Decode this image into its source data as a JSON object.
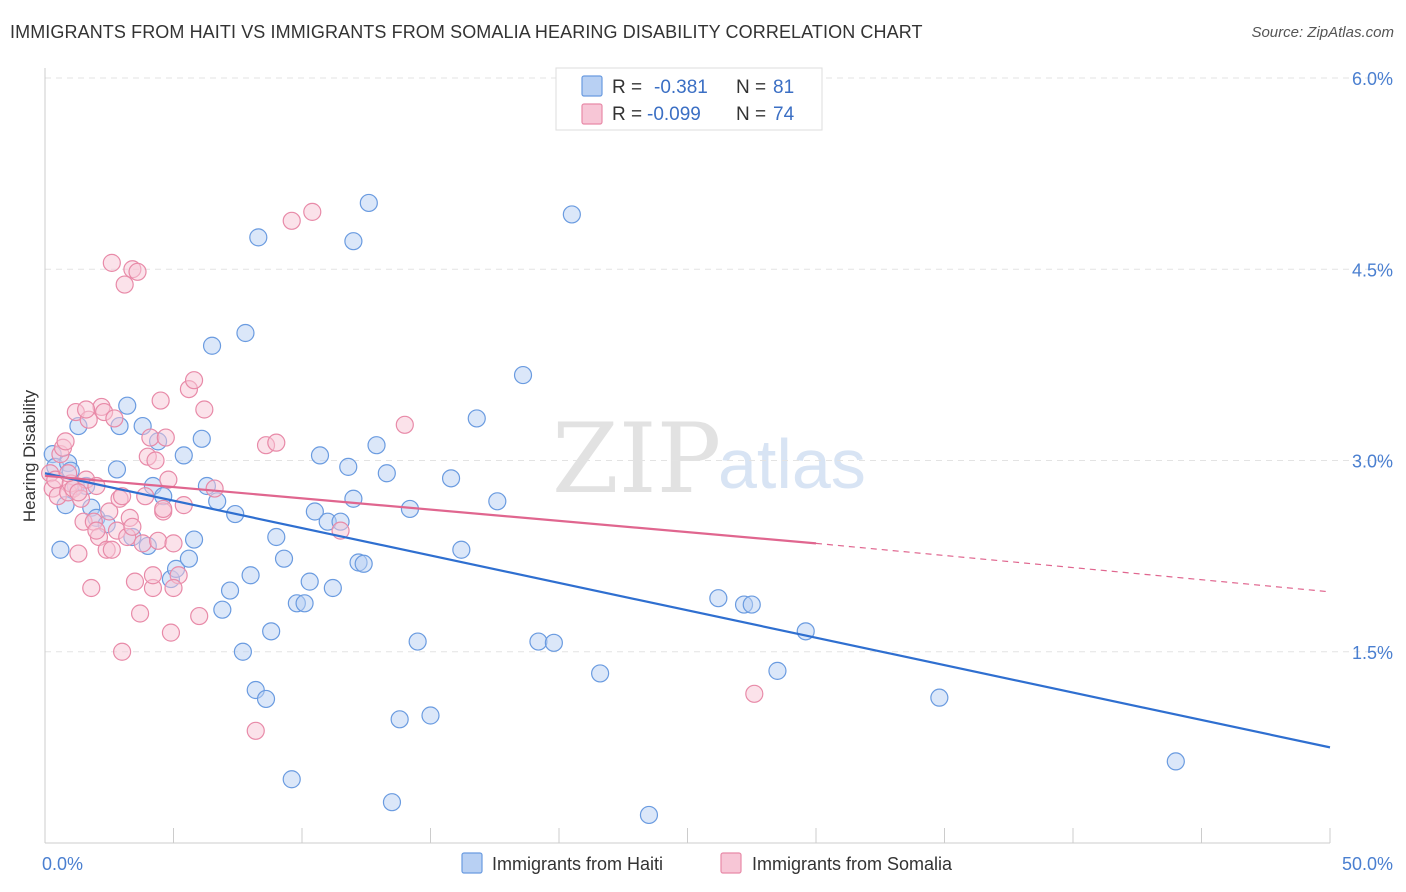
{
  "header": {
    "title": "IMMIGRANTS FROM HAITI VS IMMIGRANTS FROM SOMALIA HEARING DISABILITY CORRELATION CHART",
    "source": "Source: ZipAtlas.com"
  },
  "watermark": {
    "zip": "ZIP",
    "atlas": "atlas"
  },
  "legend_top": [
    {
      "r_label": "R =",
      "r_value": "-0.381",
      "n_label": "N =",
      "n_value": "81",
      "color": "#6a9be0",
      "fill": "#b8d0f3"
    },
    {
      "r_label": "R =",
      "r_value": "-0.099",
      "n_label": "N =",
      "n_value": "74",
      "color": "#e88aa8",
      "fill": "#f7c6d6"
    }
  ],
  "colors": {
    "haiti_stroke": "#6a9be0",
    "haiti_fill": "#b8d0f3",
    "haiti_line": "#2f6fd0",
    "somalia_stroke": "#e88aa8",
    "somalia_fill": "#f7c6d6",
    "somalia_line": "#e0668f",
    "grid": "#e3e3e3",
    "axis": "#cccccc",
    "tick_text": "#4a7fd0"
  },
  "chart_data": {
    "type": "scatter",
    "title": "IMMIGRANTS FROM HAITI VS IMMIGRANTS FROM SOMALIA HEARING DISABILITY CORRELATION CHART",
    "xlabel": "",
    "ylabel": "Hearing Disability",
    "xlim": [
      0,
      50
    ],
    "ylim": [
      0,
      6.0
    ],
    "x_tick_labels": [
      "0.0%",
      "50.0%"
    ],
    "y_ticks": [
      1.5,
      3.0,
      4.5,
      6.0
    ],
    "y_tick_labels": [
      "1.5%",
      "3.0%",
      "4.5%",
      "6.0%"
    ],
    "grid": true,
    "legend_placement": "bottom-center",
    "series": [
      {
        "name": "Immigrants from Haiti",
        "trend": {
          "x": [
            0,
            50
          ],
          "y": [
            2.9,
            0.75
          ]
        },
        "points": [
          [
            0.3,
            3.05
          ],
          [
            0.4,
            2.95
          ],
          [
            0.6,
            2.3
          ],
          [
            0.8,
            2.65
          ],
          [
            0.9,
            2.98
          ],
          [
            1.0,
            2.92
          ],
          [
            1.2,
            2.8
          ],
          [
            1.3,
            3.27
          ],
          [
            1.6,
            2.8
          ],
          [
            1.8,
            2.63
          ],
          [
            2.0,
            2.55
          ],
          [
            2.4,
            2.5
          ],
          [
            2.8,
            2.93
          ],
          [
            2.9,
            3.27
          ],
          [
            3.2,
            3.43
          ],
          [
            3.4,
            2.4
          ],
          [
            3.8,
            3.27
          ],
          [
            4.0,
            2.33
          ],
          [
            4.2,
            2.8
          ],
          [
            4.4,
            3.15
          ],
          [
            4.6,
            2.72
          ],
          [
            4.9,
            2.07
          ],
          [
            5.1,
            2.15
          ],
          [
            5.4,
            3.04
          ],
          [
            5.6,
            2.23
          ],
          [
            5.8,
            2.38
          ],
          [
            6.1,
            3.17
          ],
          [
            6.3,
            2.8
          ],
          [
            6.5,
            3.9
          ],
          [
            6.7,
            2.68
          ],
          [
            6.9,
            1.83
          ],
          [
            7.2,
            1.98
          ],
          [
            7.4,
            2.58
          ],
          [
            7.7,
            1.5
          ],
          [
            7.8,
            4.0
          ],
          [
            8.0,
            2.1
          ],
          [
            8.2,
            1.2
          ],
          [
            8.3,
            4.75
          ],
          [
            8.6,
            1.13
          ],
          [
            8.8,
            1.66
          ],
          [
            9.0,
            2.4
          ],
          [
            9.3,
            2.23
          ],
          [
            9.6,
            0.5
          ],
          [
            9.8,
            1.88
          ],
          [
            10.1,
            1.88
          ],
          [
            10.3,
            2.05
          ],
          [
            10.5,
            2.6
          ],
          [
            10.7,
            3.04
          ],
          [
            11.0,
            2.52
          ],
          [
            11.2,
            2.0
          ],
          [
            11.5,
            2.52
          ],
          [
            11.8,
            2.95
          ],
          [
            12.0,
            2.7
          ],
          [
            12.2,
            2.2
          ],
          [
            12.0,
            4.72
          ],
          [
            12.4,
            2.19
          ],
          [
            12.6,
            5.02
          ],
          [
            12.9,
            3.12
          ],
          [
            13.3,
            2.9
          ],
          [
            13.5,
            0.32
          ],
          [
            13.8,
            0.97
          ],
          [
            14.2,
            2.62
          ],
          [
            14.5,
            1.58
          ],
          [
            15.0,
            1.0
          ],
          [
            15.8,
            2.86
          ],
          [
            16.2,
            2.3
          ],
          [
            16.8,
            3.33
          ],
          [
            17.6,
            2.68
          ],
          [
            18.6,
            3.67
          ],
          [
            19.2,
            1.58
          ],
          [
            19.8,
            1.57
          ],
          [
            20.5,
            4.93
          ],
          [
            21.6,
            1.33
          ],
          [
            23.5,
            0.22
          ],
          [
            26.2,
            1.92
          ],
          [
            27.2,
            1.87
          ],
          [
            27.5,
            1.87
          ],
          [
            28.5,
            1.35
          ],
          [
            29.6,
            1.66
          ],
          [
            34.8,
            1.14
          ],
          [
            44.0,
            0.64
          ]
        ]
      },
      {
        "name": "Immigrants from Somalia",
        "trend": {
          "x": [
            0,
            30
          ],
          "y": [
            2.88,
            2.35
          ]
        },
        "trend_dashed": {
          "x": [
            30,
            50
          ],
          "y": [
            2.35,
            1.97
          ]
        },
        "points": [
          [
            0.2,
            2.9
          ],
          [
            0.3,
            2.78
          ],
          [
            0.4,
            2.85
          ],
          [
            0.5,
            2.72
          ],
          [
            0.6,
            3.05
          ],
          [
            0.7,
            3.1
          ],
          [
            0.8,
            3.15
          ],
          [
            0.9,
            2.75
          ],
          [
            1.0,
            2.82
          ],
          [
            1.1,
            2.78
          ],
          [
            1.2,
            3.38
          ],
          [
            1.3,
            2.27
          ],
          [
            1.4,
            2.7
          ],
          [
            1.5,
            2.52
          ],
          [
            1.6,
            2.85
          ],
          [
            1.7,
            3.32
          ],
          [
            1.8,
            2.0
          ],
          [
            1.9,
            2.52
          ],
          [
            2.0,
            2.8
          ],
          [
            2.1,
            2.4
          ],
          [
            2.2,
            3.42
          ],
          [
            2.3,
            3.38
          ],
          [
            2.4,
            2.3
          ],
          [
            2.5,
            2.6
          ],
          [
            2.6,
            4.55
          ],
          [
            2.7,
            3.33
          ],
          [
            2.8,
            2.45
          ],
          [
            2.9,
            2.7
          ],
          [
            3.0,
            1.5
          ],
          [
            3.1,
            4.38
          ],
          [
            3.2,
            2.4
          ],
          [
            3.3,
            2.55
          ],
          [
            3.4,
            4.5
          ],
          [
            3.5,
            2.05
          ],
          [
            3.6,
            4.48
          ],
          [
            3.7,
            1.8
          ],
          [
            3.8,
            2.35
          ],
          [
            3.9,
            2.72
          ],
          [
            4.0,
            3.03
          ],
          [
            4.1,
            3.18
          ],
          [
            4.2,
            2.0
          ],
          [
            4.3,
            3.0
          ],
          [
            4.4,
            2.37
          ],
          [
            4.5,
            3.47
          ],
          [
            4.6,
            2.6
          ],
          [
            4.7,
            3.18
          ],
          [
            4.8,
            2.85
          ],
          [
            4.9,
            1.65
          ],
          [
            5.0,
            2.35
          ],
          [
            5.2,
            2.1
          ],
          [
            5.4,
            2.65
          ],
          [
            5.6,
            3.56
          ],
          [
            5.8,
            3.63
          ],
          [
            6.0,
            1.78
          ],
          [
            6.2,
            3.4
          ],
          [
            6.6,
            2.78
          ],
          [
            8.2,
            0.88
          ],
          [
            8.6,
            3.12
          ],
          [
            9.0,
            3.14
          ],
          [
            9.6,
            4.88
          ],
          [
            10.4,
            4.95
          ],
          [
            11.5,
            2.45
          ],
          [
            14.0,
            3.28
          ],
          [
            27.6,
            1.17
          ],
          [
            1.3,
            2.75
          ],
          [
            2.0,
            2.45
          ],
          [
            3.0,
            2.72
          ],
          [
            4.2,
            2.1
          ],
          [
            5.0,
            2.0
          ],
          [
            0.9,
            2.9
          ],
          [
            1.6,
            3.4
          ],
          [
            2.6,
            2.3
          ],
          [
            3.4,
            2.48
          ],
          [
            4.6,
            2.62
          ]
        ]
      }
    ]
  }
}
